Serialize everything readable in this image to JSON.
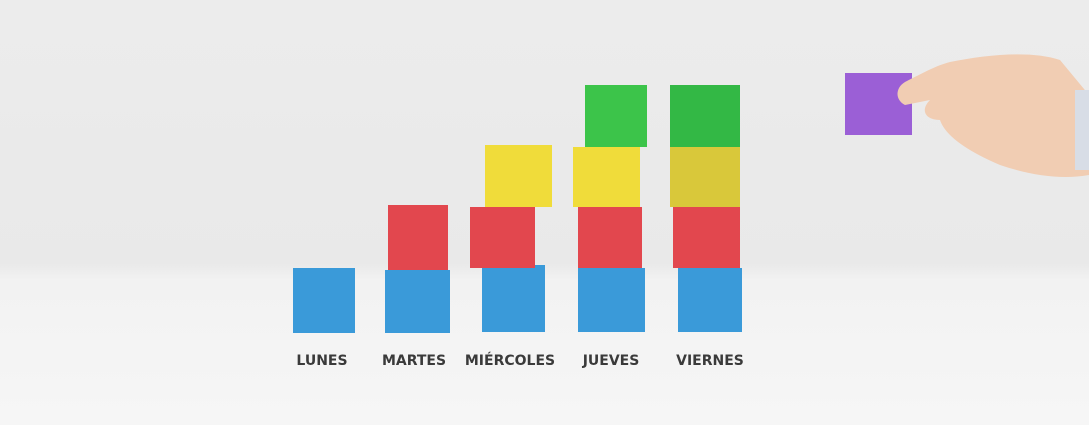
{
  "labels": [
    "LUNES",
    "MARTES",
    "MIÉRCOLES",
    "JUEVES",
    "VIERNES"
  ]
}
